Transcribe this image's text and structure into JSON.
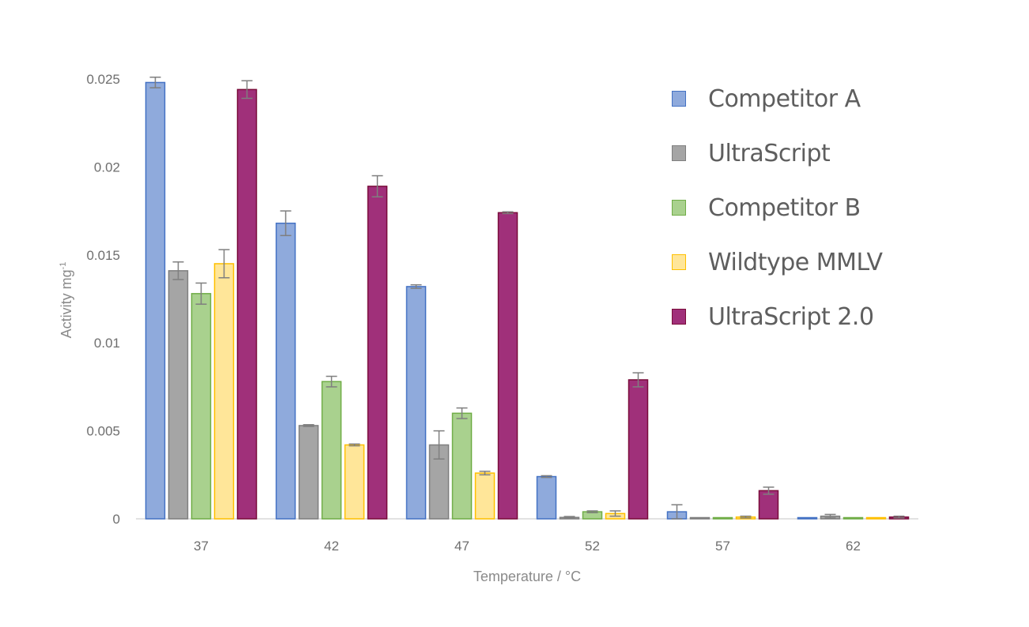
{
  "chart_data": {
    "type": "bar",
    "title": "",
    "xlabel": "Temperature / °C",
    "ylabel": "Activity mg⁻¹",
    "ylim": [
      0,
      0.025
    ],
    "yticks": [
      "0",
      "0.005",
      "0.01",
      "0.015",
      "0.02",
      "0.025"
    ],
    "categories": [
      "37",
      "42",
      "47",
      "52",
      "57",
      "62"
    ],
    "grid": false,
    "legend_position": "upper right",
    "series": [
      {
        "name": "Competitor A",
        "color": "#8faadc",
        "border": "#4472c4",
        "values": [
          0.0248,
          0.0168,
          0.0132,
          0.0024,
          0.0004,
          5e-05
        ],
        "errors": [
          0.0003,
          0.0007,
          0.0001,
          5e-05,
          0.0004,
          0.0
        ]
      },
      {
        "name": "UltraScript",
        "color": "#a5a5a5",
        "border": "#7f7f7f",
        "values": [
          0.0141,
          0.0053,
          0.0042,
          8e-05,
          5e-05,
          0.00015
        ],
        "errors": [
          0.0005,
          5e-05,
          0.0008,
          5e-05,
          0.0,
          0.0001
        ]
      },
      {
        "name": "Competitor B",
        "color": "#a9d18e",
        "border": "#70ad47",
        "values": [
          0.0128,
          0.0078,
          0.006,
          0.0004,
          5e-05,
          5e-05
        ],
        "errors": [
          0.0006,
          0.0003,
          0.0003,
          5e-05,
          0.0,
          0.0
        ]
      },
      {
        "name": "Wildtype MMLV",
        "color": "#ffe699",
        "border": "#ffc000",
        "values": [
          0.0145,
          0.0042,
          0.0026,
          0.0003,
          0.0001,
          0.0
        ],
        "errors": [
          0.0008,
          5e-05,
          0.0001,
          0.00015,
          5e-05,
          0.0
        ]
      },
      {
        "name": "UltraScript 2.0",
        "color": "#a0307a",
        "border": "#7a0c3a",
        "values": [
          0.0244,
          0.0189,
          0.0174,
          0.0079,
          0.0016,
          0.0001
        ],
        "errors": [
          0.0005,
          0.0006,
          5e-05,
          0.0004,
          0.0002,
          5e-05
        ]
      }
    ]
  },
  "legend": {
    "items": [
      {
        "label": "Competitor A"
      },
      {
        "label": "UltraScript"
      },
      {
        "label": "Competitor B"
      },
      {
        "label": "Wildtype MMLV"
      },
      {
        "label": "UltraScript 2.0"
      }
    ]
  }
}
